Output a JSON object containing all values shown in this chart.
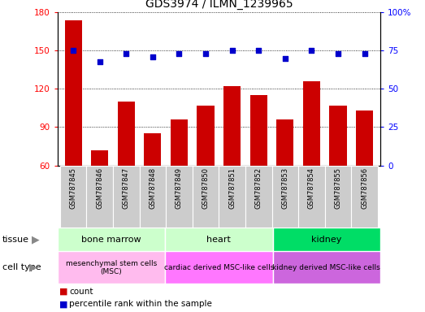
{
  "title": "GDS3974 / ILMN_1239965",
  "samples": [
    "GSM787845",
    "GSM787846",
    "GSM787847",
    "GSM787848",
    "GSM787849",
    "GSM787850",
    "GSM787851",
    "GSM787852",
    "GSM787853",
    "GSM787854",
    "GSM787855",
    "GSM787856"
  ],
  "counts": [
    174,
    72,
    110,
    85,
    96,
    107,
    122,
    115,
    96,
    126,
    107,
    103
  ],
  "percentile_ranks": [
    75,
    68,
    73,
    71,
    73,
    73,
    75,
    75,
    70,
    75,
    73,
    73
  ],
  "ylim_left": [
    60,
    180
  ],
  "ylim_right": [
    0,
    100
  ],
  "yticks_left": [
    60,
    90,
    120,
    150,
    180
  ],
  "yticks_right": [
    0,
    25,
    50,
    75,
    100
  ],
  "bar_color": "#cc0000",
  "dot_color": "#0000cc",
  "sample_bg_color": "#cccccc",
  "tissue_groups": [
    {
      "label": "bone marrow",
      "start": 0,
      "end": 4,
      "color": "#ccffcc"
    },
    {
      "label": "heart",
      "start": 4,
      "end": 8,
      "color": "#ccffcc"
    },
    {
      "label": "kidney",
      "start": 8,
      "end": 12,
      "color": "#00dd66"
    }
  ],
  "cell_type_groups": [
    {
      "label": "mesenchymal stem cells\n(MSC)",
      "start": 0,
      "end": 4,
      "color": "#ffbbff"
    },
    {
      "label": "cardiac derived MSC-like cells",
      "start": 4,
      "end": 8,
      "color": "#ff88ff"
    },
    {
      "label": "kidney derived MSC-like cells",
      "start": 8,
      "end": 12,
      "color": "#dd77ee"
    }
  ]
}
